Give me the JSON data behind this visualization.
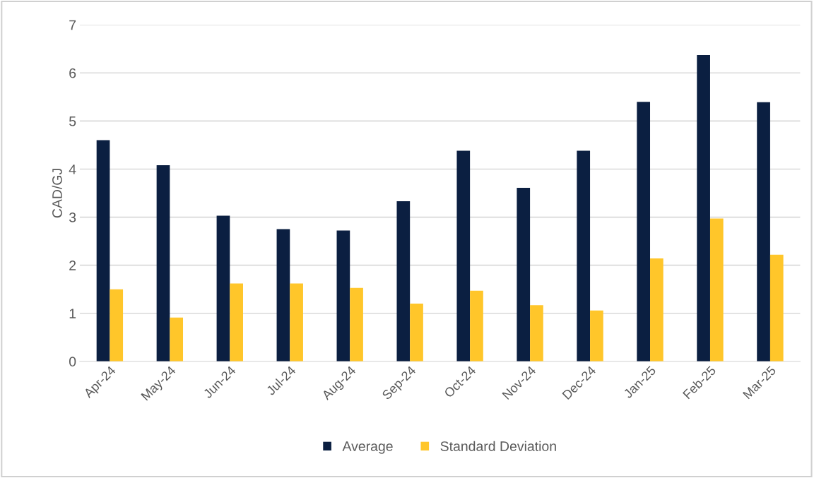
{
  "chart_data": {
    "type": "bar",
    "ylabel": "CAD/GJ",
    "categories": [
      "Apr-24",
      "May-24",
      "Jun-24",
      "Jul-24",
      "Aug-24",
      "Sep-24",
      "Oct-24",
      "Nov-24",
      "Dec-24",
      "Jan-25",
      "Feb-25",
      "Mar-25"
    ],
    "series": [
      {
        "name": "Average",
        "color": "#0b1f41",
        "values": [
          4.6,
          4.08,
          3.03,
          2.75,
          2.72,
          3.33,
          4.38,
          3.61,
          4.38,
          5.4,
          6.37,
          5.39
        ]
      },
      {
        "name": "Standard Deviation",
        "color": "#ffc62a",
        "values": [
          1.5,
          0.91,
          1.62,
          1.62,
          1.53,
          1.2,
          1.47,
          1.17,
          1.06,
          2.14,
          2.97,
          2.22
        ]
      }
    ],
    "ylim": [
      0,
      7
    ],
    "yticks": [
      0,
      1,
      2,
      3,
      4,
      5,
      6,
      7
    ],
    "grid": "y",
    "legend": "bottom"
  }
}
